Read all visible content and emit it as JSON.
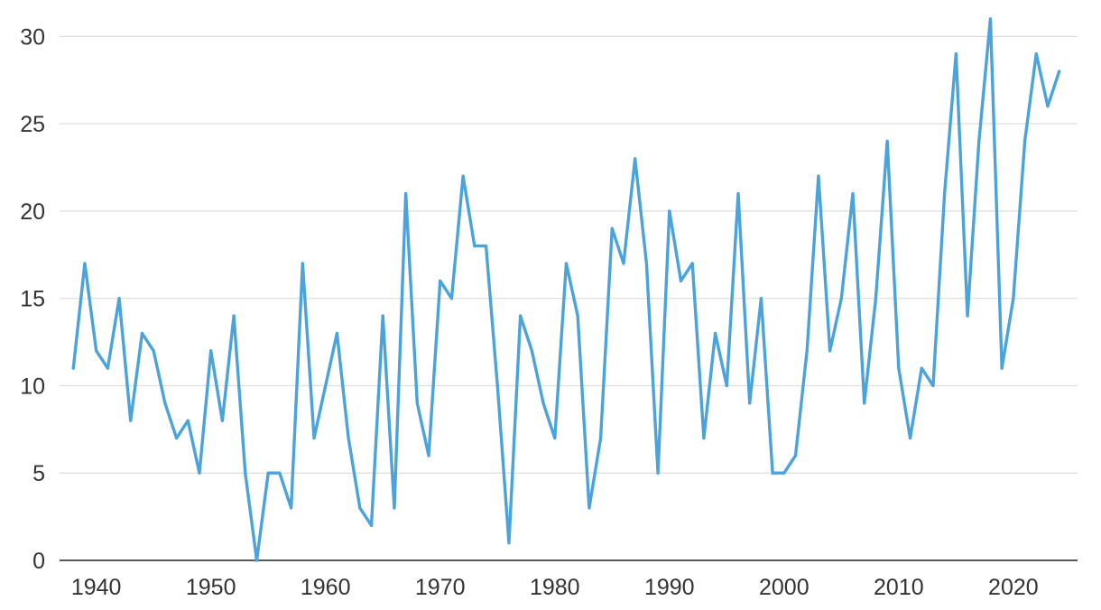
{
  "chart_data": {
    "type": "line",
    "title": "",
    "xlabel": "",
    "ylabel": "",
    "xlim": [
      1936.8,
      2025.6
    ],
    "ylim": [
      0,
      31
    ],
    "grid": true,
    "legend": "none",
    "x_ticks": [
      "1940",
      "1950",
      "1960",
      "1970",
      "1980",
      "1990",
      "2000",
      "2010",
      "2020"
    ],
    "y_ticks": [
      "0",
      "5",
      "10",
      "15",
      "20",
      "25",
      "30"
    ],
    "colors": {
      "line": "#4ba3dc",
      "grid": "#dddddd",
      "axis": "#222222",
      "text": "#333333"
    },
    "x": [
      1938,
      1939,
      1940,
      1941,
      1942,
      1943,
      1944,
      1945,
      1946,
      1947,
      1948,
      1949,
      1950,
      1951,
      1952,
      1953,
      1954,
      1955,
      1956,
      1957,
      1958,
      1959,
      1960,
      1961,
      1962,
      1963,
      1964,
      1965,
      1966,
      1967,
      1968,
      1969,
      1970,
      1971,
      1972,
      1973,
      1974,
      1975,
      1976,
      1977,
      1978,
      1979,
      1980,
      1981,
      1982,
      1983,
      1984,
      1985,
      1986,
      1987,
      1988,
      1989,
      1990,
      1991,
      1992,
      1993,
      1994,
      1995,
      1996,
      1997,
      1998,
      1999,
      2000,
      2001,
      2002,
      2003,
      2004,
      2005,
      2006,
      2007,
      2008,
      2009,
      2010,
      2011,
      2012,
      2013,
      2014,
      2015,
      2016,
      2017,
      2018,
      2019,
      2020,
      2021,
      2022,
      2023,
      2024
    ],
    "series": [
      {
        "values": [
          11,
          17,
          12,
          11,
          15,
          8,
          13,
          12,
          9,
          7,
          8,
          5,
          12,
          8,
          14,
          5,
          0,
          5,
          5,
          3,
          17,
          7,
          10,
          13,
          7,
          3,
          2,
          14,
          3,
          21,
          9,
          6,
          16,
          15,
          22,
          18,
          18,
          10,
          1,
          14,
          12,
          9,
          7,
          17,
          14,
          3,
          7,
          19,
          17,
          23,
          17,
          5,
          20,
          16,
          17,
          7,
          13,
          10,
          21,
          9,
          15,
          5,
          5,
          6,
          12,
          22,
          12,
          15,
          21,
          9,
          15,
          24,
          11,
          7,
          11,
          10,
          21,
          29,
          14,
          24,
          31,
          11,
          15,
          24,
          29,
          26,
          28
        ]
      }
    ]
  }
}
